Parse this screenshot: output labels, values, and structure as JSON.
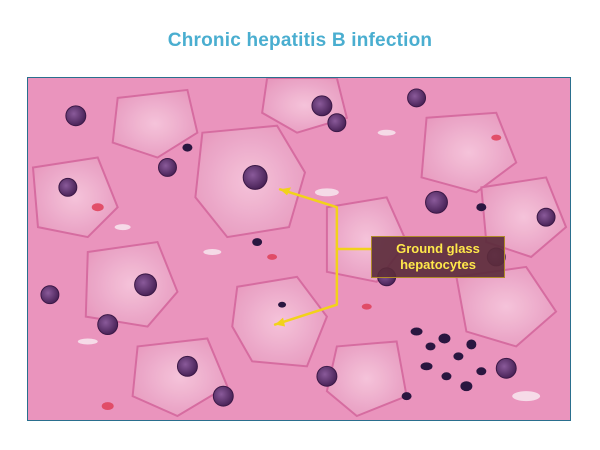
{
  "slide": {
    "title": "Chronic hepatitis B infection"
  },
  "micrograph": {
    "stain": "hematoxylin-and-eosin",
    "background_color": "#e88fba"
  },
  "callout": {
    "line1": "Ground glass",
    "line2": "hepatocytes",
    "text_color": "#ffe84a",
    "arrow_color": "#f2d21a",
    "box_color": "#5c2c3c"
  }
}
